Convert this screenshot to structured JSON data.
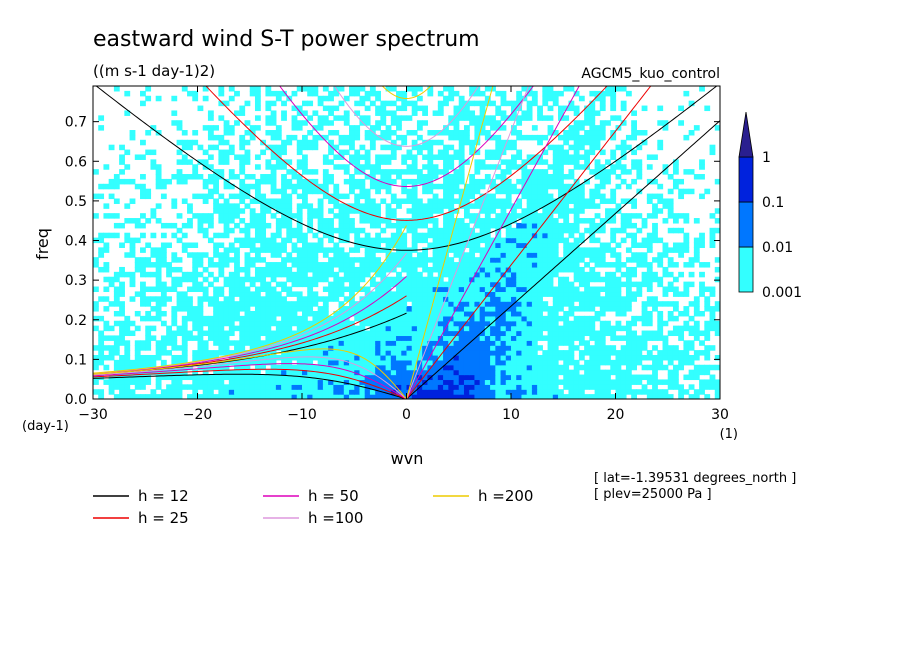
{
  "chart_data": {
    "type": "heatmap",
    "title": "eastward wind S-T power spectrum",
    "subtitle": "((m s-1 day-1)2)",
    "run_label": "AGCM5_kuo_control",
    "xlabel": "wvn",
    "ylabel": "freq",
    "x_unit": "(1)",
    "y_unit": "(day-1)",
    "xlim": [
      -30,
      30
    ],
    "ylim": [
      0,
      0.79
    ],
    "x_ticks": [
      -30,
      -20,
      -10,
      0,
      10,
      20,
      30
    ],
    "y_ticks": [
      0.0,
      0.1,
      0.2,
      0.3,
      0.4,
      0.5,
      0.6,
      0.7
    ],
    "x_tick_labels": [
      "−30",
      "−20",
      "−10",
      "0",
      "10",
      "20",
      "30"
    ],
    "y_tick_labels": [
      "0.0",
      "0.1",
      "0.2",
      "0.3",
      "0.4",
      "0.5",
      "0.6",
      "0.7"
    ],
    "colorbar": {
      "levels": [
        0.001,
        0.01,
        0.1,
        1
      ],
      "labels": [
        "0.001",
        "0.01",
        "0.1",
        "1"
      ],
      "colors": [
        "#33ffff",
        "#0077ff",
        "#0022dd",
        "#2a1f8f"
      ]
    },
    "legend": [
      {
        "label": "h = 12",
        "color": "#000000"
      },
      {
        "label": "h = 25",
        "color": "#ee0000"
      },
      {
        "label": "h = 50",
        "color": "#dd00bb"
      },
      {
        "label": "h =100",
        "color": "#dd99dd"
      },
      {
        "label": "h =200",
        "color": "#eecc00"
      }
    ],
    "notes": [
      "[ lat=-1.39531 degrees_north ]",
      "[ plev=25000 Pa ]"
    ],
    "equivalent_depths": [
      12,
      25,
      50,
      100,
      200
    ],
    "grid": false
  }
}
